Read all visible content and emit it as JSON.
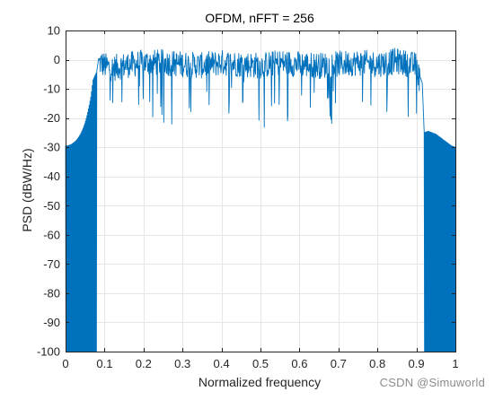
{
  "chart_data": {
    "type": "line",
    "title": "OFDM, nFFT = 256",
    "xlabel": "Normalized frequency",
    "ylabel": "PSD (dBW/Hz)",
    "xlim": [
      0,
      1
    ],
    "ylim": [
      -100,
      10
    ],
    "xticks": [
      "0",
      "0.1",
      "0.2",
      "0.3",
      "0.4",
      "0.5",
      "0.6",
      "0.7",
      "0.8",
      "0.9",
      "1"
    ],
    "yticks": [
      "-100",
      "-90",
      "-80",
      "-70",
      "-60",
      "-50",
      "-40",
      "-30",
      "-20",
      "-10",
      "0",
      "10"
    ],
    "grid": true,
    "series_color": "#0072BD",
    "series": [
      {
        "name": "",
        "x": [
          0,
          0.005,
          0.01,
          0.015,
          0.02,
          0.025,
          0.03,
          0.035,
          0.04,
          0.045,
          0.05,
          0.055,
          0.06,
          0.065,
          0.07,
          0.075,
          0.08,
          0.085,
          0.09,
          0.1,
          0.12,
          0.15,
          0.2,
          0.25,
          0.3,
          0.35,
          0.4,
          0.45,
          0.5,
          0.55,
          0.6,
          0.65,
          0.7,
          0.75,
          0.8,
          0.85,
          0.9,
          0.91,
          0.915,
          0.92,
          0.93,
          0.94,
          0.95,
          0.96,
          0.97,
          0.98,
          0.99,
          1
        ],
        "y": [
          -29.5,
          -29.5,
          -29.3,
          -29.0,
          -28.5,
          -28.0,
          -27.2,
          -26.2,
          -25.0,
          -23.5,
          -21.5,
          -19.0,
          -16.0,
          -12.5,
          -7.0,
          -5.5,
          -4.0,
          0.5,
          1.0,
          0.0,
          -1.0,
          0.0,
          1.0,
          1.0,
          0.5,
          0.0,
          1.0,
          0.5,
          0.0,
          1.0,
          0.5,
          0.0,
          0.5,
          1.0,
          0.5,
          1.5,
          0.0,
          -6.0,
          -8.0,
          -25.0,
          -24.5,
          -25.0,
          -25.5,
          -26.5,
          -27.5,
          -28.5,
          -29.5,
          -30.0
        ],
        "floor_bands": [
          [
            0,
            0.08
          ],
          [
            0.92,
            1
          ]
        ],
        "floor": -100
      }
    ]
  },
  "watermark": "CSDN @Simuworld"
}
